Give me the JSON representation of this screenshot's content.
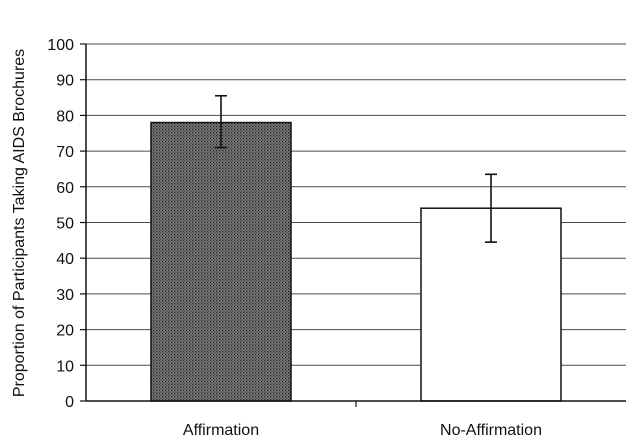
{
  "chart_data": {
    "type": "bar",
    "title": "",
    "xlabel": "",
    "ylabel": "Proportion of Participants Taking AIDS Brochures",
    "categories": [
      "Affirmation",
      "No-Affirmation"
    ],
    "values": [
      78,
      54
    ],
    "error_bars": [
      {
        "low": 71,
        "high": 85.5
      },
      {
        "low": 44.5,
        "high": 63.5
      }
    ],
    "bar_colors": [
      "#5a5a5a",
      "#ffffff"
    ],
    "bar_patterns": [
      "stipple",
      "none"
    ],
    "ylim": [
      0,
      100
    ],
    "yticks": [
      "0",
      "10",
      "20",
      "30",
      "40",
      "50",
      "60",
      "70",
      "80",
      "90",
      "100"
    ],
    "grid": true,
    "legend": "none"
  }
}
